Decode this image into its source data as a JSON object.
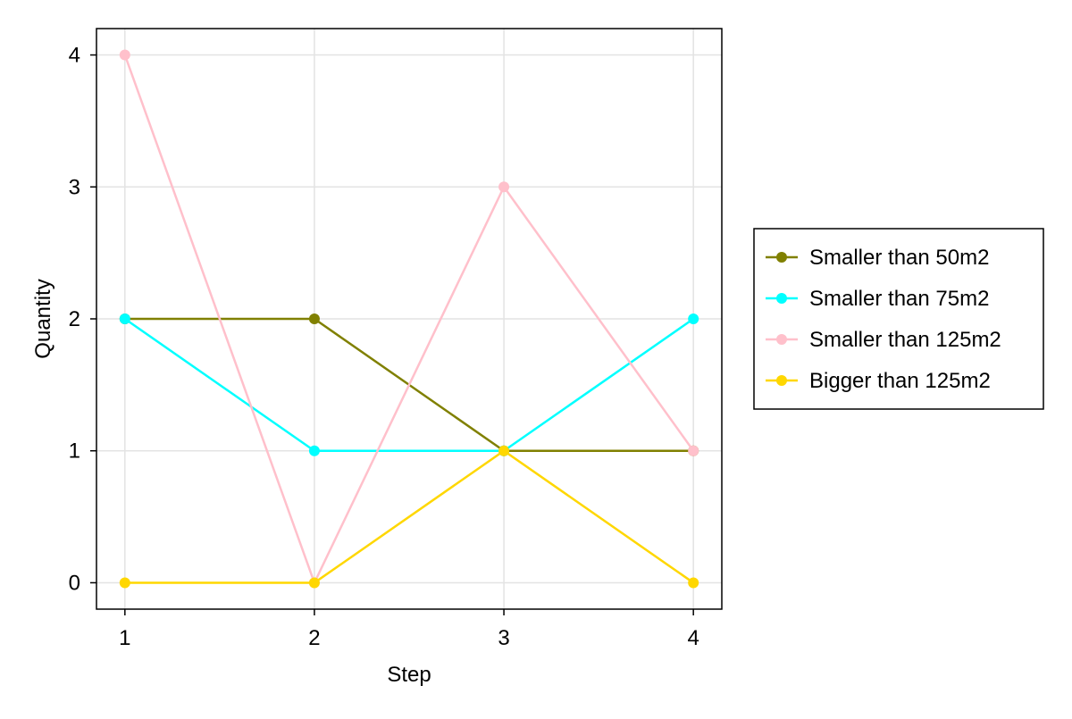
{
  "chart_data": {
    "type": "line",
    "title": "",
    "xlabel": "Step",
    "ylabel": "Quantity",
    "x": [
      1,
      2,
      3,
      4
    ],
    "xlim": [
      0.85,
      4.15
    ],
    "ylim": [
      -0.2,
      4.2
    ],
    "xticks": [
      1,
      2,
      3,
      4
    ],
    "yticks": [
      0,
      1,
      2,
      3,
      4
    ],
    "grid": true,
    "legend_position": "right",
    "series": [
      {
        "name": "Smaller than 50m2",
        "color": "#808000",
        "values": [
          2,
          2,
          1,
          1
        ]
      },
      {
        "name": "Smaller than 75m2",
        "color": "#00FFFF",
        "values": [
          2,
          1,
          1,
          2
        ]
      },
      {
        "name": "Smaller than 125m2",
        "color": "#FFC0CB",
        "values": [
          4,
          0,
          3,
          1
        ]
      },
      {
        "name": "Bigger than 125m2",
        "color": "#FFD700",
        "values": [
          0,
          0,
          1,
          0
        ]
      }
    ]
  }
}
